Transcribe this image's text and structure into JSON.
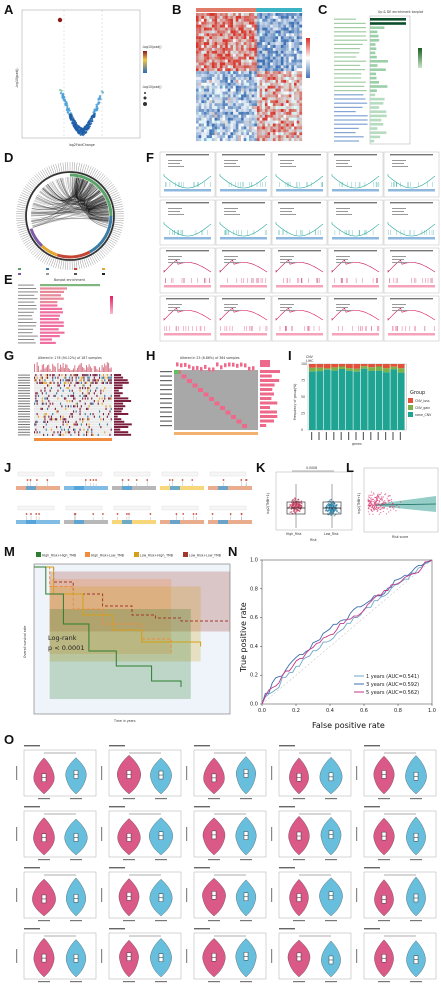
{
  "labels": [
    "A",
    "B",
    "C",
    "D",
    "E",
    "F",
    "G",
    "H",
    "I",
    "J",
    "K",
    "L",
    "M",
    "N",
    "O"
  ],
  "panelA": {
    "xlabel": "log2FoldChange",
    "ylabel": "-log10(padj)",
    "legend": [
      "-log10(padj)",
      "-log10(padj)"
    ]
  },
  "panelC": {
    "title": "Up & DE enrichment barplot"
  },
  "panelE": {
    "title": "Barplot enrichment"
  },
  "panelG": {
    "title": "Altered in 176 (94.12%) of 187 samples"
  },
  "panelH": {
    "title": "Altered in 25 (6.86%) of 364 samples"
  },
  "panelI": {
    "title": "CNV",
    "subtitle": "LIHC",
    "ylabel": "Frequency of group(%)",
    "xlabel": "genes",
    "legend_title": "Group",
    "legend": [
      {
        "name": "CNV_loss",
        "color": "#e0523a"
      },
      {
        "name": "CNV_gain",
        "color": "#7bb24a"
      },
      {
        "name": "none_CNV",
        "color": "#1fa392"
      }
    ],
    "yticks": [
      "0",
      "25",
      "50",
      "75",
      "100"
    ]
  },
  "panelK": {
    "title": "0.0008",
    "ylabel": "log2(TMB+1)",
    "xlabel": "Risk",
    "groups": [
      "High_Risk",
      "Low_Risk"
    ]
  },
  "panelL": {
    "xlabel": "Risk score",
    "ylabel": "log2(TMB+1)"
  },
  "panelM": {
    "legend": [
      "High_Risk+High_TMB",
      "High_Risk+Low_TMB",
      "Low_Risk+High_TMB",
      "Low_Risk+Low_TMB"
    ],
    "colors": [
      "#2e7d32",
      "#f28b3c",
      "#d4a017",
      "#a0392f"
    ],
    "ylabel": "Overall survival rate",
    "xlabel": "Time in years",
    "logrank": "Log-rank",
    "pvalue": "p < 0.0001"
  },
  "panelN": {
    "xlabel": "False positive rate",
    "ylabel": "True positive rate",
    "xticks": [
      "0.0",
      "0.2",
      "0.4",
      "0.6",
      "0.8",
      "1.0"
    ],
    "yticks": [
      "0.0",
      "0.2",
      "0.4",
      "0.6",
      "0.8",
      "1.0"
    ],
    "legend": [
      {
        "name": "1 years (AUC=0.541)",
        "color": "#6fa8c8"
      },
      {
        "name": "3 years (AUC=0.592)",
        "color": "#3d6fb0"
      },
      {
        "name": "5 years (AUC=0.562)",
        "color": "#c23a8a"
      }
    ]
  }
}
